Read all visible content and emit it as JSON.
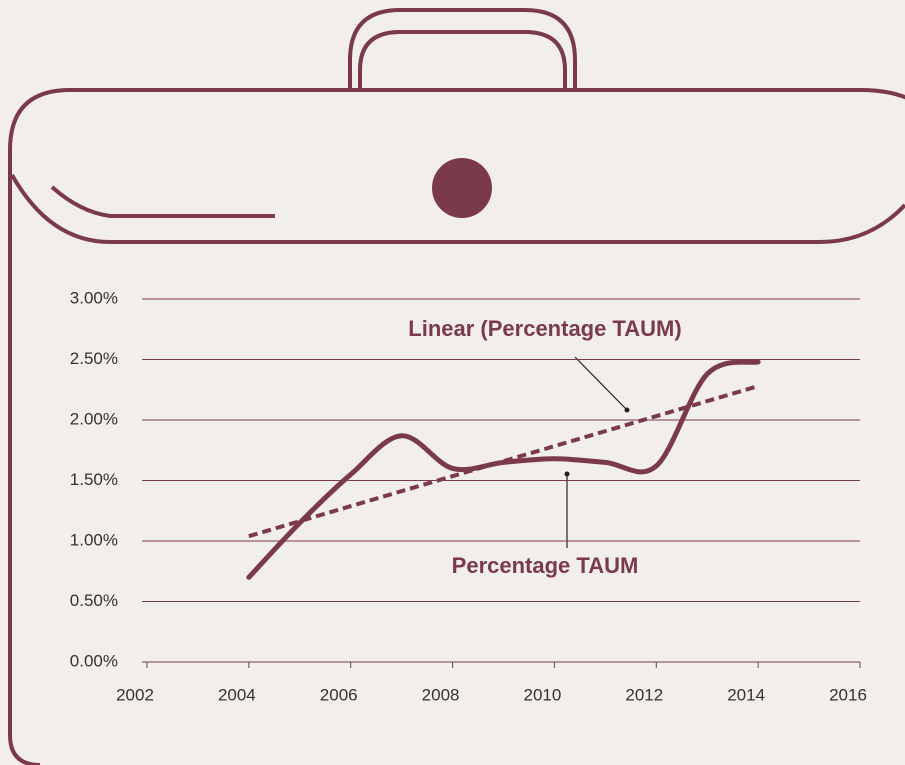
{
  "chart_data": {
    "type": "line",
    "x": [
      2004,
      2005,
      2006,
      2007,
      2008,
      2009,
      2010,
      2011,
      2012,
      2013,
      2014
    ],
    "series": [
      {
        "name": "Percentage TAUM",
        "color": "#7b3a4a",
        "style": "solid",
        "x": [
          2004,
          2005,
          2006,
          2007,
          2008,
          2009,
          2010,
          2011,
          2012,
          2013,
          2014
        ],
        "values": [
          0.7,
          1.15,
          1.55,
          1.87,
          1.6,
          1.65,
          1.68,
          1.65,
          1.62,
          2.38,
          2.48
        ]
      },
      {
        "name": "Linear (Percentage TAUM)",
        "color": "#7b3a4a",
        "style": "dashed",
        "x": [
          2004,
          2014
        ],
        "values": [
          1.04,
          2.28
        ]
      }
    ],
    "xlim": [
      2002,
      2016
    ],
    "xticks": [
      2002,
      2004,
      2006,
      2008,
      2010,
      2012,
      2014,
      2016
    ],
    "ylim": [
      0,
      3
    ],
    "yticks": [
      {
        "value": 0,
        "label": "0.00%"
      },
      {
        "value": 0.5,
        "label": "0.50%"
      },
      {
        "value": 1,
        "label": "1.00%"
      },
      {
        "value": 1.5,
        "label": "1.50%"
      },
      {
        "value": 2,
        "label": "2.00%"
      },
      {
        "value": 2.5,
        "label": "2.50%"
      },
      {
        "value": 3,
        "label": "3.00%"
      }
    ],
    "grid": true
  }
}
